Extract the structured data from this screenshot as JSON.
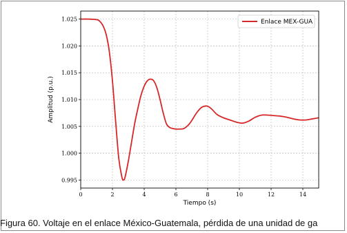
{
  "figure": {
    "caption": "Figura 60. Voltaje en el enlace México-Guatemala, pérdida de una unidad de ga"
  },
  "chart_data": {
    "type": "line",
    "title": "",
    "xlabel": "Tiempo (s)",
    "ylabel": "Amplitud (p.u.)",
    "xlim": [
      0,
      15
    ],
    "ylim": [
      0.9935,
      1.0265
    ],
    "xticks": [
      0,
      2,
      4,
      6,
      8,
      10,
      12,
      14
    ],
    "xtick_labels": [
      "0",
      "2",
      "4",
      "6",
      "8",
      "10",
      "12",
      "14"
    ],
    "yticks": [
      0.995,
      1.0,
      1.005,
      1.01,
      1.015,
      1.02,
      1.025
    ],
    "ytick_labels": [
      "0.995",
      "1.000",
      "1.005",
      "1.010",
      "1.015",
      "1.020",
      "1.025"
    ],
    "grid": true,
    "legend_position": "top-right",
    "colors": {
      "series": "#d62728"
    },
    "series": [
      {
        "name": "Enlace MEX-GUA",
        "x": [
          0,
          0.5,
          1.0,
          1.2,
          1.4,
          1.6,
          1.8,
          2.0,
          2.2,
          2.4,
          2.6,
          2.7,
          2.8,
          3.0,
          3.2,
          3.4,
          3.6,
          3.8,
          4.0,
          4.2,
          4.4,
          4.6,
          4.8,
          5.0,
          5.2,
          5.4,
          5.6,
          5.8,
          6.0,
          6.2,
          6.5,
          6.8,
          7.0,
          7.3,
          7.6,
          7.9,
          8.1,
          8.3,
          8.6,
          9.0,
          9.4,
          9.8,
          10.2,
          10.6,
          11.0,
          11.4,
          11.8,
          12.2,
          12.6,
          13.0,
          13.4,
          13.8,
          14.2,
          14.6,
          15.0
        ],
        "y": [
          1.025,
          1.025,
          1.0249,
          1.0246,
          1.0238,
          1.0222,
          1.019,
          1.0135,
          1.006,
          0.999,
          0.9955,
          0.995,
          0.9956,
          0.9985,
          1.002,
          1.0055,
          1.0083,
          1.0108,
          1.0125,
          1.0135,
          1.0138,
          1.0135,
          1.0122,
          1.01,
          1.0075,
          1.0055,
          1.0048,
          1.0046,
          1.0045,
          1.0045,
          1.0046,
          1.0053,
          1.0061,
          1.0075,
          1.0085,
          1.0088,
          1.0086,
          1.0081,
          1.0072,
          1.0066,
          1.0062,
          1.0058,
          1.0056,
          1.006,
          1.0067,
          1.0071,
          1.0071,
          1.007,
          1.0069,
          1.0067,
          1.0064,
          1.0062,
          1.0062,
          1.0064,
          1.0066
        ]
      }
    ]
  }
}
